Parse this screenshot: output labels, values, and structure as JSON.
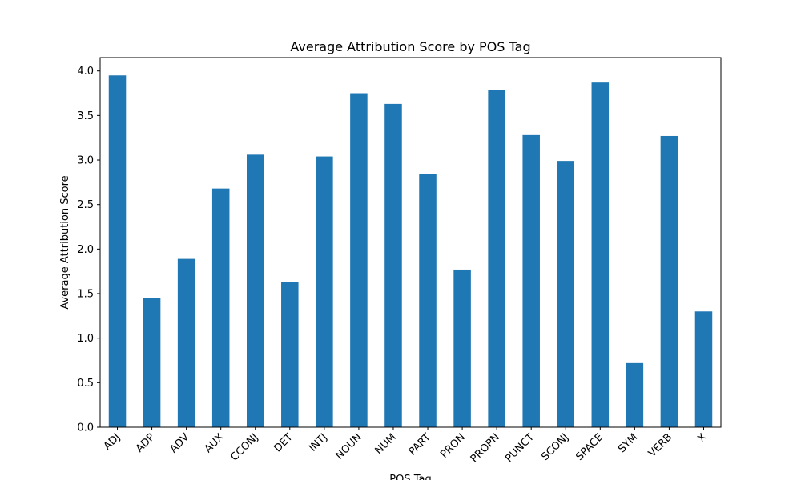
{
  "chart_data": {
    "type": "bar",
    "title": "Average Attribution Score by POS Tag",
    "xlabel": "POS Tag",
    "ylabel": "Average Attribution Score",
    "categories": [
      "ADJ",
      "ADP",
      "ADV",
      "AUX",
      "CCONJ",
      "DET",
      "INTJ",
      "NOUN",
      "NUM",
      "PART",
      "PRON",
      "PROPN",
      "PUNCT",
      "SCONJ",
      "SPACE",
      "SYM",
      "VERB",
      "X"
    ],
    "values": [
      3.95,
      1.45,
      1.89,
      2.68,
      3.06,
      1.63,
      3.04,
      3.75,
      3.63,
      2.84,
      1.77,
      3.79,
      3.28,
      2.99,
      3.87,
      0.72,
      3.27,
      1.3
    ],
    "ylim": [
      0,
      4.15
    ],
    "yticks": [
      "0.0",
      "0.5",
      "1.0",
      "1.5",
      "2.0",
      "2.5",
      "3.0",
      "3.5",
      "4.0"
    ],
    "bar_color": "#1f77b4",
    "grid": false,
    "legend": "none"
  }
}
